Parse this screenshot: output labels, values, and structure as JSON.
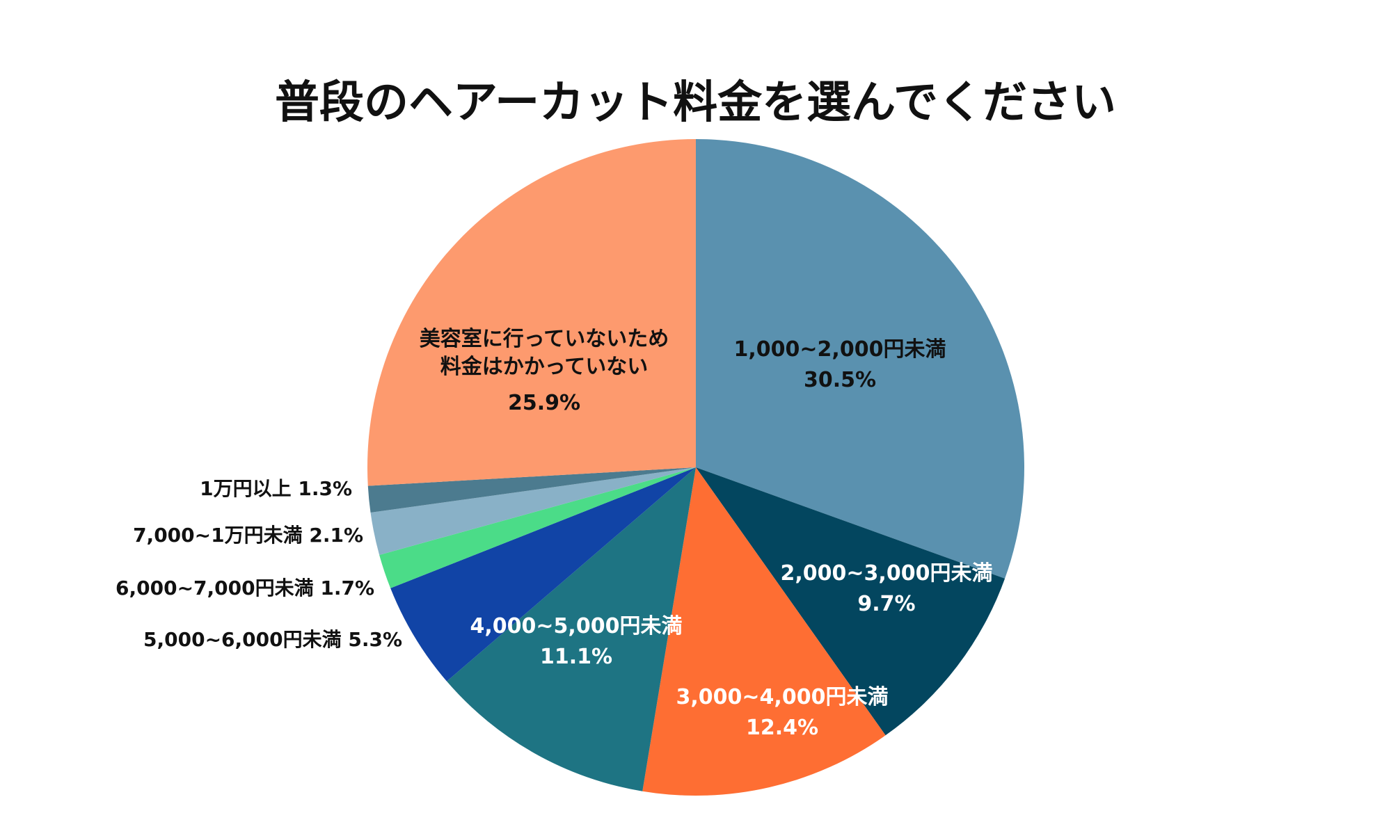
{
  "chart_data": {
    "type": "pie",
    "title": "普段のヘアーカット料金を選んでください",
    "slices": [
      {
        "label_lines": [
          "1,000~2,000円未満"
        ],
        "value": 30.5,
        "value_text": "30.5%",
        "color": "#5a91af",
        "text_color": "#111111",
        "label_placement": "inside"
      },
      {
        "label_lines": [
          "2,000~3,000円未満"
        ],
        "value": 9.7,
        "value_text": "9.7%",
        "color": "#03465f",
        "text_color": "#ffffff",
        "label_placement": "inside"
      },
      {
        "label_lines": [
          "3,000~4,000円未満"
        ],
        "value": 12.4,
        "value_text": "12.4%",
        "color": "#fe6e33",
        "text_color": "#ffffff",
        "label_placement": "inside"
      },
      {
        "label_lines": [
          "4,000~5,000円未満"
        ],
        "value": 11.1,
        "value_text": "11.1%",
        "color": "#1e7483",
        "text_color": "#ffffff",
        "label_placement": "inside"
      },
      {
        "label_lines": [
          "5,000~6,000円未満"
        ],
        "value": 5.3,
        "value_text": "5.3%",
        "color": "#1144a6",
        "text_color": "#111111",
        "label_placement": "outside-left"
      },
      {
        "label_lines": [
          "6,000~7,000円未満"
        ],
        "value": 1.7,
        "value_text": "1.7%",
        "color": "#4bdc88",
        "text_color": "#111111",
        "label_placement": "outside-left"
      },
      {
        "label_lines": [
          "7,000~1万円未満"
        ],
        "value": 2.1,
        "value_text": "2.1%",
        "color": "#89b1c7",
        "text_color": "#111111",
        "label_placement": "outside-left"
      },
      {
        "label_lines": [
          "1万円以上"
        ],
        "value": 1.3,
        "value_text": "1.3%",
        "color": "#4c7b8f",
        "text_color": "#111111",
        "label_placement": "outside-left"
      },
      {
        "label_lines": [
          "美容室に行っていないため",
          "料金はかかっていない"
        ],
        "value": 25.9,
        "value_text": "25.9%",
        "color": "#fd9a6e",
        "text_color": "#111111",
        "label_placement": "inside"
      }
    ]
  }
}
